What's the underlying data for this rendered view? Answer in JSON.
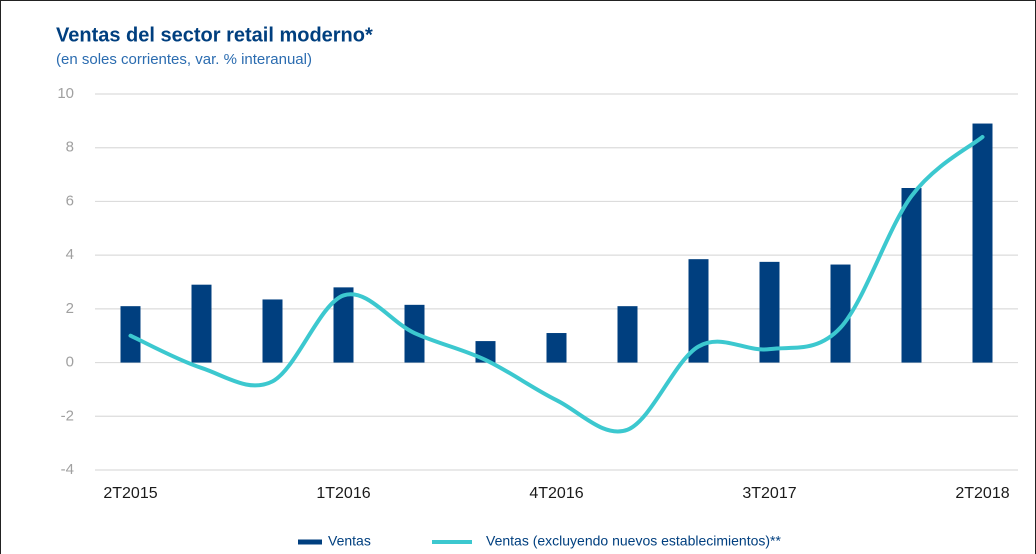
{
  "chart_data": {
    "type": "bar_line",
    "title": "Ventas del sector retail moderno*",
    "subtitle": "(en soles corrientes, var. % interanual)",
    "categories": [
      "2T2015",
      null,
      null,
      "1T2016",
      null,
      null,
      "4T2016",
      null,
      null,
      "3T2017",
      null,
      null,
      "2T2018"
    ],
    "series": [
      {
        "name": "Ventas",
        "color": "#003f7f",
        "kind": "bar",
        "values": [
          2.1,
          2.9,
          2.35,
          2.8,
          2.15,
          0.8,
          1.1,
          2.1,
          3.85,
          3.75,
          3.65,
          6.5,
          8.9
        ]
      },
      {
        "name": "Ventas (excluyendo nuevos establecimientos)**",
        "color": "#3cc8cf",
        "kind": "line",
        "values": [
          1.0,
          -0.2,
          -0.7,
          2.5,
          1.1,
          0.1,
          -1.4,
          -2.5,
          0.6,
          0.5,
          1.3,
          6.2,
          8.4
        ]
      }
    ],
    "ylim": [
      -4,
      10
    ],
    "yticks": [
      -4,
      -2,
      0,
      2,
      4,
      6,
      8,
      10
    ],
    "grid": true
  }
}
